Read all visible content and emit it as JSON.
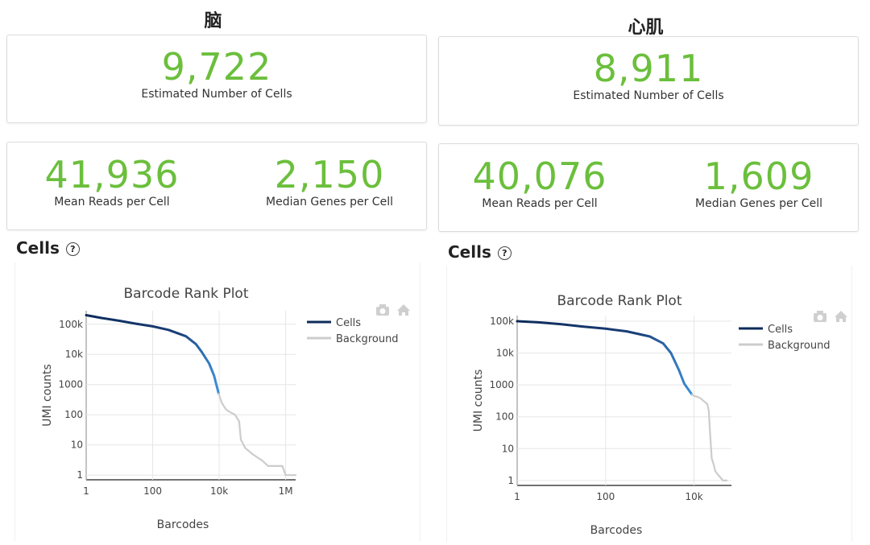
{
  "panels": [
    {
      "title": "脑",
      "estimated_cells": {
        "value": "9,722",
        "label": "Estimated Number of Cells"
      },
      "mean_reads": {
        "value": "41,936",
        "label": "Mean Reads per Cell"
      },
      "median_genes": {
        "value": "2,150",
        "label": "Median Genes per Cell"
      },
      "section_title": "Cells",
      "help_icon": "?"
    },
    {
      "title": "心肌",
      "estimated_cells": {
        "value": "8,911",
        "label": "Estimated Number of Cells"
      },
      "mean_reads": {
        "value": "40,076",
        "label": "Mean Reads per Cell"
      },
      "median_genes": {
        "value": "1,609",
        "label": "Median Genes per Cell"
      },
      "section_title": "Cells",
      "help_icon": "?"
    }
  ],
  "colors": {
    "accent": "#6bbf3c",
    "cells_line": "#0d2b5a",
    "cells_line_end": "#3d8fd8",
    "background_line": "#cccccc"
  },
  "chart_data": [
    {
      "type": "line",
      "title": "Barcode Rank Plot",
      "xlabel": "Barcodes",
      "ylabel": "UMI counts",
      "xscale": "log",
      "yscale": "log",
      "xlim": [
        1,
        2000000
      ],
      "ylim": [
        0.7,
        280000
      ],
      "xticks": [
        {
          "v": 1,
          "label": "1"
        },
        {
          "v": 100,
          "label": "100"
        },
        {
          "v": 10000,
          "label": "10k"
        },
        {
          "v": 1000000,
          "label": "1M"
        }
      ],
      "yticks": [
        {
          "v": 1,
          "label": "1"
        },
        {
          "v": 10,
          "label": "10"
        },
        {
          "v": 100,
          "label": "100"
        },
        {
          "v": 1000,
          "label": "1000"
        },
        {
          "v": 10000,
          "label": "10k"
        },
        {
          "v": 100000,
          "label": "100k"
        }
      ],
      "legend": [
        "Cells",
        "Background"
      ],
      "toolbar": [
        "camera-icon",
        "home-icon"
      ],
      "series": [
        {
          "name": "Cells",
          "x": [
            1,
            3,
            10,
            30,
            100,
            300,
            1000,
            2000,
            3000,
            5000,
            7000,
            9722
          ],
          "y": [
            200000,
            160000,
            130000,
            105000,
            85000,
            65000,
            40000,
            22000,
            12000,
            5000,
            2000,
            500
          ]
        },
        {
          "name": "Background",
          "x": [
            9722,
            12000,
            16000,
            22000,
            30000,
            40000,
            45000,
            60000,
            100000,
            200000,
            300000,
            800000,
            1000000,
            2000000
          ],
          "y": [
            500,
            250,
            150,
            120,
            100,
            60,
            15,
            8,
            5,
            3,
            2,
            2,
            1,
            1
          ]
        }
      ]
    },
    {
      "type": "line",
      "title": "Barcode Rank Plot",
      "xlabel": "Barcodes",
      "ylabel": "UMI counts",
      "xscale": "log",
      "yscale": "log",
      "xlim": [
        1,
        70000
      ],
      "ylim": [
        0.7,
        150000
      ],
      "xticks": [
        {
          "v": 1,
          "label": "1"
        },
        {
          "v": 100,
          "label": "100"
        },
        {
          "v": 10000,
          "label": "10k"
        }
      ],
      "yticks": [
        {
          "v": 1,
          "label": "1"
        },
        {
          "v": 10,
          "label": "10"
        },
        {
          "v": 100,
          "label": "100"
        },
        {
          "v": 1000,
          "label": "1000"
        },
        {
          "v": 10000,
          "label": "10k"
        },
        {
          "v": 100000,
          "label": "100k"
        }
      ],
      "legend": [
        "Cells",
        "Background"
      ],
      "toolbar": [
        "camera-icon",
        "home-icon"
      ],
      "series": [
        {
          "name": "Cells",
          "x": [
            1,
            3,
            10,
            30,
            100,
            300,
            1000,
            2000,
            3000,
            4500,
            6000,
            8911
          ],
          "y": [
            100000,
            92000,
            80000,
            68000,
            58000,
            48000,
            33000,
            20000,
            10000,
            3000,
            1100,
            500
          ]
        },
        {
          "name": "Background",
          "x": [
            8911,
            10000,
            12000,
            14000,
            17000,
            20000,
            21500,
            23000,
            25000,
            28000,
            30000,
            35000,
            45000,
            55000
          ],
          "y": [
            500,
            450,
            420,
            380,
            300,
            250,
            150,
            30,
            5,
            3,
            2,
            1.5,
            1,
            1
          ]
        }
      ]
    }
  ]
}
